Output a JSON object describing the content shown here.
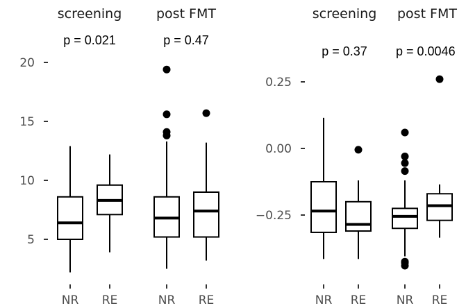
{
  "chart_data": [
    {
      "type": "boxplot",
      "ylim": [
        1.5,
        21
      ],
      "yticks": [
        5,
        10,
        15,
        20
      ],
      "panels": [
        {
          "title": "screening",
          "pvalue": "p = 0.021",
          "categories": [
            "NR",
            "RE"
          ],
          "boxes": [
            {
              "min": 2.2,
              "q1": 5.0,
              "median": 6.4,
              "q3": 8.6,
              "max": 12.9,
              "outliers": []
            },
            {
              "min": 3.9,
              "q1": 7.1,
              "median": 8.3,
              "q3": 9.6,
              "max": 12.2,
              "outliers": []
            }
          ]
        },
        {
          "title": "post FMT",
          "pvalue": "p = 0.47",
          "categories": [
            "NR",
            "RE"
          ],
          "boxes": [
            {
              "min": 2.5,
              "q1": 5.2,
              "median": 6.8,
              "q3": 8.6,
              "max": 13.3,
              "outliers": [
                13.8,
                14.1,
                15.6,
                19.4
              ]
            },
            {
              "min": 3.2,
              "q1": 5.2,
              "median": 7.4,
              "q3": 9.0,
              "max": 13.2,
              "outliers": [
                15.7
              ]
            }
          ]
        }
      ]
    },
    {
      "type": "boxplot",
      "ylim": [
        -0.44,
        0.36
      ],
      "yticks": [
        0.25,
        0.0,
        -0.25
      ],
      "ytick_labels": [
        "0.25",
        "0.00",
        "−0.25"
      ],
      "panels": [
        {
          "title": "screening",
          "pvalue": "p = 0.37",
          "categories": [
            "NR",
            "RE"
          ],
          "boxes": [
            {
              "min": -0.415,
              "q1": -0.315,
              "median": -0.235,
              "q3": -0.125,
              "max": 0.115,
              "outliers": []
            },
            {
              "min": -0.415,
              "q1": -0.31,
              "median": -0.285,
              "q3": -0.2,
              "max": -0.12,
              "outliers": [
                -0.005
              ]
            }
          ]
        },
        {
          "title": "post FMT",
          "pvalue": "p = 0.0046",
          "categories": [
            "NR",
            "RE"
          ],
          "boxes": [
            {
              "min": -0.405,
              "q1": -0.3,
              "median": -0.255,
              "q3": -0.225,
              "max": -0.12,
              "outliers": [
                0.06,
                -0.03,
                -0.055,
                -0.085,
                -0.425,
                -0.43,
                -0.44
              ]
            },
            {
              "min": -0.335,
              "q1": -0.27,
              "median": -0.215,
              "q3": -0.17,
              "max": -0.135,
              "outliers": [
                0.26
              ]
            }
          ]
        }
      ]
    }
  ]
}
